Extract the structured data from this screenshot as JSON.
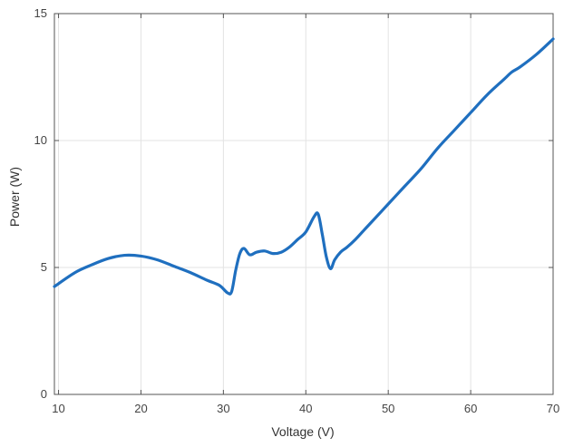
{
  "chart_data": {
    "type": "line",
    "title": "",
    "xlabel": "Voltage (V)",
    "ylabel": "Power (W)",
    "xlim": [
      9.5,
      70
    ],
    "ylim": [
      0,
      15
    ],
    "xticks": [
      10,
      20,
      30,
      40,
      50,
      60,
      70
    ],
    "yticks": [
      0,
      5,
      10,
      15
    ],
    "xtick_labels": [
      "10",
      "20",
      "30",
      "40",
      "50",
      "60",
      "70"
    ],
    "ytick_labels": [
      "0",
      "5",
      "10",
      "15"
    ],
    "grid": true,
    "legend": "none",
    "colors": {
      "line": "#1f6fbf",
      "grid": "#e3e3e3",
      "axes": "#555555"
    },
    "series": [
      {
        "x": [
          9.5,
          12,
          14,
          16,
          18,
          20,
          22,
          24,
          26,
          28,
          29.5,
          30.5,
          31,
          31.5,
          32,
          32.5,
          33.2,
          34,
          35,
          36,
          37,
          38,
          39,
          40,
          41,
          41.5,
          42,
          42.5,
          43,
          43.5,
          44.2,
          45,
          46,
          47,
          48,
          50,
          52,
          54,
          56,
          58,
          60,
          62,
          64,
          65,
          66,
          68,
          70
        ],
        "y": [
          4.25,
          4.8,
          5.1,
          5.35,
          5.48,
          5.45,
          5.3,
          5.05,
          4.8,
          4.5,
          4.3,
          4.0,
          4.05,
          4.9,
          5.55,
          5.75,
          5.5,
          5.6,
          5.65,
          5.55,
          5.6,
          5.8,
          6.1,
          6.4,
          7.0,
          7.1,
          6.3,
          5.4,
          4.95,
          5.3,
          5.6,
          5.8,
          6.1,
          6.45,
          6.8,
          7.5,
          8.2,
          8.9,
          9.7,
          10.4,
          11.1,
          11.8,
          12.4,
          12.7,
          12.9,
          13.4,
          14.0
        ]
      }
    ]
  }
}
